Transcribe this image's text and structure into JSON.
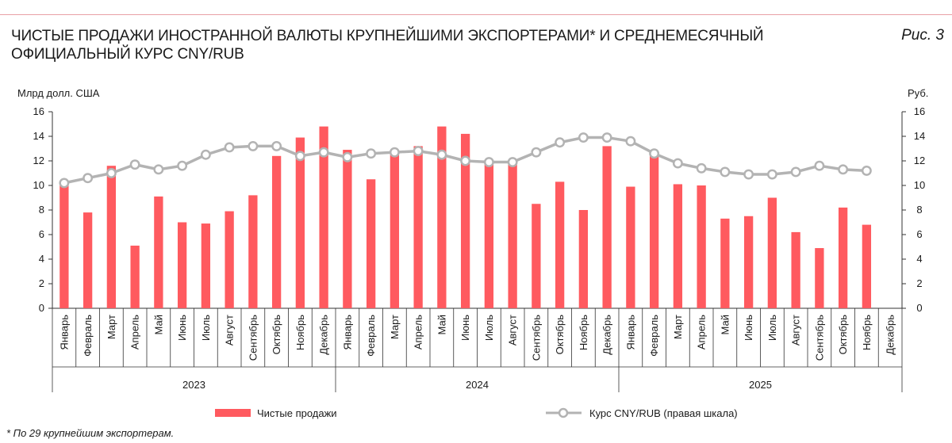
{
  "header": {
    "title": "ЧИСТЫЕ ПРОДАЖИ ИНОСТРАННОЙ ВАЛЮТЫ КРУПНЕЙШИМИ ЭКСПОРТЕРАМИ* И СРЕДНЕМЕСЯЧНЫЙ ОФИЦИАЛЬНЫЙ КУРС CNY/RUB",
    "figure_label": "Рис. 3"
  },
  "footnote": "* По 29 крупнейшим экспортерам.",
  "colors": {
    "bars": "#ff5a5f",
    "line": "#b3b3b3",
    "axis": "#333333",
    "top_rule": "#e8a0a6"
  },
  "chart_data": {
    "type": "bar",
    "categories": [
      "Январь",
      "Февраль",
      "Март",
      "Апрель",
      "Май",
      "Июнь",
      "Июль",
      "Август",
      "Сентябрь",
      "Октябрь",
      "Ноябрь",
      "Декабрь",
      "Январь",
      "Февраль",
      "Март",
      "Апрель",
      "Май",
      "Июнь",
      "Июль",
      "Август",
      "Сентябрь",
      "Октябрь",
      "Ноябрь",
      "Декабрь",
      "Январь",
      "Февраль",
      "Март",
      "Апрель",
      "Май",
      "Июнь",
      "Июль",
      "Август",
      "Сентябрь",
      "Октябрь",
      "Ноябрь",
      "Декабрь"
    ],
    "years": [
      "2023",
      "2024",
      "2025"
    ],
    "ylabel": "Млрд долл. США",
    "y2label": "Руб.",
    "ylim": [
      0,
      16
    ],
    "y2lim": [
      0,
      16
    ],
    "yticks": [
      0,
      2,
      4,
      6,
      8,
      10,
      12,
      14,
      16
    ],
    "series": [
      {
        "name": "Чистые продажи",
        "type": "bar",
        "axis": "left",
        "values": [
          10.0,
          7.8,
          11.6,
          5.1,
          9.1,
          7.0,
          6.9,
          7.9,
          9.2,
          12.4,
          13.9,
          14.8,
          12.9,
          10.5,
          12.5,
          13.2,
          14.8,
          14.2,
          11.9,
          11.8,
          8.5,
          10.3,
          8.0,
          13.2,
          9.9,
          12.5,
          10.1,
          10.0,
          7.3,
          7.5,
          9.0,
          6.2,
          4.9,
          8.2,
          6.8,
          null
        ]
      },
      {
        "name": "Курс CNY/RUB (правая шкала)",
        "type": "line",
        "axis": "right",
        "values": [
          10.2,
          10.6,
          11.0,
          11.7,
          11.3,
          11.6,
          12.5,
          13.1,
          13.2,
          13.2,
          12.4,
          12.7,
          12.3,
          12.6,
          12.7,
          12.8,
          12.5,
          12.0,
          11.9,
          11.9,
          12.7,
          13.5,
          13.9,
          13.9,
          13.6,
          12.6,
          11.8,
          11.4,
          11.1,
          10.9,
          10.9,
          11.1,
          11.6,
          11.3,
          11.2,
          null
        ]
      }
    ],
    "legend": "bottom",
    "grid": false
  }
}
